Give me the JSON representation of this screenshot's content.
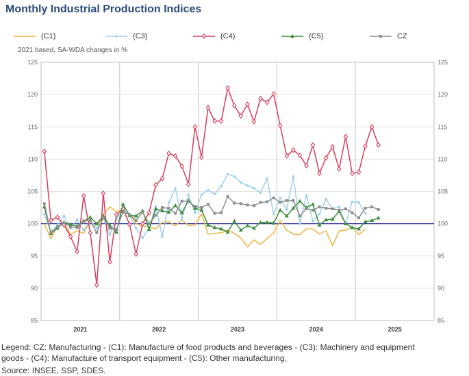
{
  "header": {
    "title": "Monthly Industrial Production Indices"
  },
  "subtitle": "2021 based, SA-WDA changes in %",
  "footer": {
    "legend_line1": "Legend: CZ: Manufacturing - (C1): Manufacture of food products and beverages - (C3): Machinery and equipment",
    "legend_line2": "goods - (C4): Manufacture of transport equipment - (C5): Other manufacturing.",
    "source": "Source: INSEE, SSP, SDES."
  },
  "chart_data": {
    "type": "line",
    "title": "Monthly Industrial Production Indices",
    "ylabel": "2021 based, SA-WDA changes in %",
    "ylim": [
      85,
      125
    ],
    "yticks": [
      85,
      90,
      95,
      100,
      105,
      110,
      115,
      120,
      125
    ],
    "reference_line": 100,
    "x_start": "2021-01",
    "x_end": "2025-12",
    "x_tick_labels": [
      "2021",
      "2022",
      "2023",
      "2024",
      "2025"
    ],
    "grid": true,
    "legend_position": "top",
    "series": [
      {
        "name": "(C1)",
        "color": "#f0b440",
        "marker": "none",
        "values": [
          100.0,
          97.7,
          99.6,
          100.1,
          98.3,
          98.9,
          98.5,
          100.4,
          99.3,
          101.5,
          102.6,
          101.9,
          102.1,
          101.5,
          100.0,
          99.6,
          99.5,
          99.2,
          100.2,
          100.3,
          99.7,
          100.6,
          99.7,
          99.8,
          101.5,
          98.4,
          98.5,
          98.6,
          99.0,
          98.5,
          97.8,
          96.4,
          97.5,
          96.8,
          97.7,
          98.6,
          100.5,
          99.0,
          98.4,
          98.3,
          99.2,
          99.2,
          98.4,
          98.9,
          96.6,
          98.9,
          99.0,
          99.5,
          98.3,
          99.2
        ]
      },
      {
        "name": "(C3)",
        "color": "#9fd0ea",
        "marker": "dot",
        "values": [
          101.5,
          98.8,
          99.8,
          101.2,
          99.3,
          100.6,
          99.0,
          100.5,
          99.3,
          100.8,
          98.3,
          100.7,
          102.4,
          101.2,
          99.3,
          97.8,
          99.4,
          102.7,
          98.0,
          103.3,
          105.5,
          100.7,
          104.5,
          101.7,
          104.5,
          105.2,
          104.6,
          105.8,
          107.7,
          107.3,
          106.4,
          105.9,
          105.5,
          104.8,
          107.0,
          101.5,
          104.0,
          102.2,
          107.3,
          100.0,
          104.4,
          100.4,
          101.5,
          103.8,
          102.3,
          102.6,
          100.0,
          103.4,
          103.3,
          101.6
        ]
      },
      {
        "name": "(C4)",
        "color": "#d83c5a",
        "marker": "diamond",
        "values": [
          111.2,
          100.5,
          101.0,
          99.8,
          98.0,
          95.7,
          104.3,
          98.6,
          90.5,
          104.7,
          94.1,
          101.4,
          102.3,
          99.9,
          95.3,
          100.0,
          101.7,
          106.0,
          107.0,
          110.9,
          110.5,
          108.9,
          106.1,
          115.0,
          110.3,
          118.0,
          115.9,
          115.9,
          121.0,
          118.3,
          116.7,
          118.5,
          115.8,
          119.4,
          118.8,
          120.1,
          115.2,
          110.5,
          111.4,
          110.6,
          109.0,
          112.2,
          107.8,
          110.2,
          111.9,
          108.5,
          113.5,
          107.8,
          108.0,
          112.0,
          115.0,
          112.2
        ]
      },
      {
        "name": "(C5)",
        "color": "#3c8c3c",
        "marker": "triangle",
        "values": [
          102.6,
          98.5,
          99.3,
          100.2,
          99.9,
          99.6,
          100.4,
          101.0,
          100.0,
          101.2,
          99.7,
          98.7,
          103.0,
          101.3,
          101.2,
          102.0,
          99.1,
          102.3,
          102.0,
          101.8,
          102.8,
          101.7,
          103.6,
          102.4,
          102.1,
          99.8,
          99.4,
          99.2,
          98.7,
          100.4,
          99.0,
          99.7,
          99.3,
          100.2,
          100.2,
          100.1,
          102.1,
          101.2,
          102.4,
          103.5,
          102.5,
          103.0,
          99.8,
          100.6,
          100.7,
          101.9,
          100.0,
          99.4,
          99.2,
          100.3,
          100.5,
          100.9
        ]
      },
      {
        "name": "CZ",
        "color": "#8e8e8e",
        "marker": "square",
        "values": [
          103.1,
          98.6,
          99.5,
          100.1,
          99.5,
          99.4,
          100.4,
          100.5,
          98.6,
          101.0,
          99.3,
          99.1,
          101.8,
          101.4,
          100.5,
          101.8,
          100.0,
          101.3,
          102.5,
          102.4,
          101.6,
          103.5,
          103.4,
          102.7,
          102.5,
          103.0,
          101.6,
          101.7,
          104.2,
          103.2,
          103.1,
          102.9,
          102.8,
          103.3,
          103.4,
          104.0,
          103.3,
          103.6,
          103.6,
          101.2,
          102.3,
          102.1,
          102.6,
          102.4,
          102.3,
          102.1,
          102.3,
          101.7,
          100.9,
          102.4,
          102.6,
          102.2
        ]
      }
    ]
  }
}
